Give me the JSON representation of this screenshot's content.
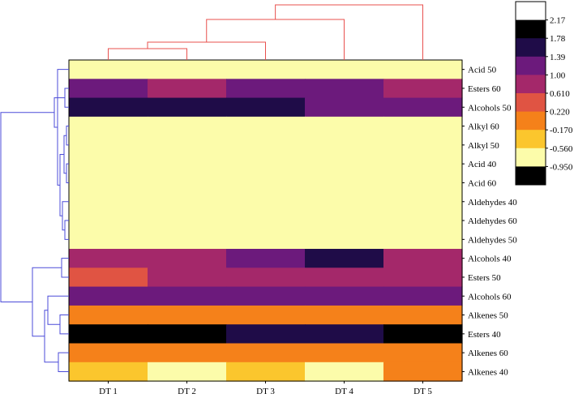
{
  "chart_data": {
    "type": "heatmap",
    "columns": [
      "DT 1",
      "DT 2",
      "DT 3",
      "DT 4",
      "DT 5"
    ],
    "rows": [
      "Acid 50",
      "Esters 60",
      "Alcohols 50",
      "Alkyl 60",
      "Alkyl 50",
      "Acid 40",
      "Acid 60",
      "Aldehydes 40",
      "Aldehydes 60",
      "Aldehydes 50",
      "Alcohols 40",
      "Esters 50",
      "Alcohols 60",
      "Alkenes 50",
      "Esters 40",
      "Alkenes 60",
      "Alkenes 40"
    ],
    "values": [
      [
        -0.95,
        -0.95,
        -0.95,
        -0.95,
        -0.95
      ],
      [
        1.0,
        0.61,
        1.0,
        1.0,
        0.61
      ],
      [
        1.78,
        1.78,
        1.78,
        1.0,
        1.0
      ],
      [
        -0.95,
        -0.95,
        -0.95,
        -0.95,
        -0.95
      ],
      [
        -0.95,
        -0.95,
        -0.95,
        -0.95,
        -0.95
      ],
      [
        -0.95,
        -0.95,
        -0.95,
        -0.95,
        -0.95
      ],
      [
        -0.95,
        -0.95,
        -0.95,
        -0.95,
        -0.95
      ],
      [
        -0.95,
        -0.95,
        -0.95,
        -0.95,
        -0.95
      ],
      [
        -0.95,
        -0.95,
        -0.95,
        -0.95,
        -0.95
      ],
      [
        -0.95,
        -0.95,
        -0.95,
        -0.95,
        -0.95
      ],
      [
        0.61,
        0.61,
        1.0,
        1.78,
        0.61
      ],
      [
        0.22,
        0.61,
        0.61,
        0.61,
        0.61
      ],
      [
        1.0,
        1.0,
        1.0,
        1.0,
        1.0
      ],
      [
        -0.17,
        -0.17,
        -0.17,
        -0.17,
        -0.17
      ],
      [
        2.17,
        2.17,
        1.78,
        1.78,
        2.17
      ],
      [
        -0.17,
        -0.17,
        -0.17,
        -0.17,
        -0.17
      ],
      [
        -0.56,
        -0.95,
        -0.56,
        -0.95,
        -0.17
      ]
    ],
    "colorbar": {
      "ticks": [
        "2.17",
        "1.78",
        "1.39",
        "1.00",
        "0.610",
        "0.220",
        "-0.170",
        "-0.560",
        "-0.950"
      ],
      "bands": [
        "#ffffff",
        "#000000",
        "#1f0c48",
        "#6c1a7c",
        "#a4286a",
        "#e05443",
        "#f5811a",
        "#fbc62d",
        "#fcfcaa",
        "#000000"
      ]
    },
    "colors": {
      "row_dendrogram": "#4b4bd8",
      "column_dendrogram": "#e8504e",
      "scale": [
        {
          "value": -0.95,
          "color": "#fcfcaa"
        },
        {
          "value": -0.56,
          "color": "#fbc62d"
        },
        {
          "value": -0.17,
          "color": "#f5811a"
        },
        {
          "value": 0.22,
          "color": "#e05443"
        },
        {
          "value": 0.61,
          "color": "#a4286a"
        },
        {
          "value": 1.0,
          "color": "#6c1a7c"
        },
        {
          "value": 1.78,
          "color": "#1f0c48"
        },
        {
          "value": 2.17,
          "color": "#000000"
        }
      ]
    }
  }
}
